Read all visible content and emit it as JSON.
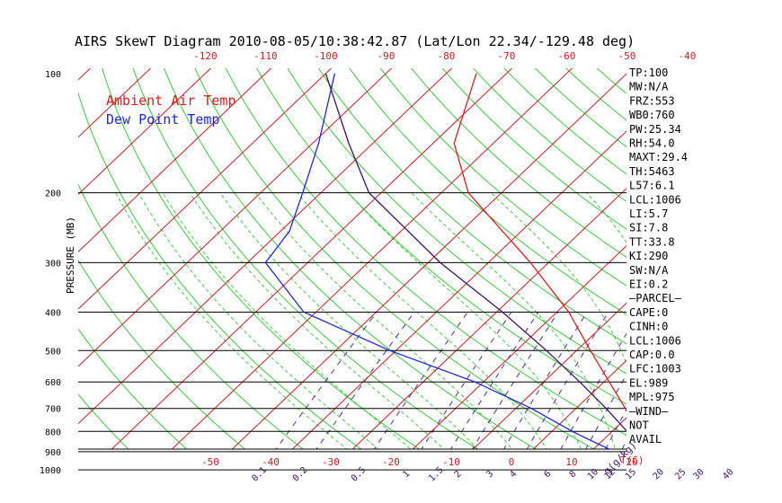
{
  "chart_data": {
    "type": "line",
    "title": "AIRS SkewT Diagram 2010-08-05/10:38:42.87 (Lat/Lon 22.34/-129.48 deg)",
    "ylabel": "PRESSURE (MB)",
    "xlabel": "T(C)",
    "mixing_ratio_label": "g(g/kg)",
    "y_scale": "log",
    "ylim": [
      1050,
      100
    ],
    "pressure_ticks": [
      "100",
      "200",
      "300",
      "400",
      "500",
      "600",
      "700",
      "800",
      "900",
      "1000"
    ],
    "bottom_temp_ticks": [
      "-50",
      "-40",
      "-30",
      "-20",
      "-10",
      "0",
      "10",
      "20"
    ],
    "top_temp_ticks": [
      "-120",
      "-110",
      "-100",
      "-90",
      "-80",
      "-70",
      "-60",
      "-50",
      "-40"
    ],
    "mixing_ratio_ticks": [
      "0.1",
      "0.2",
      "0.5",
      "1",
      "1.5",
      "2",
      "3",
      "4",
      "6",
      "8",
      "10",
      "12",
      "15",
      "20",
      "25",
      "30",
      "40"
    ],
    "legend": [
      {
        "name": "Ambient Air Temp",
        "color": "#d81e1e"
      },
      {
        "name": "Dew Point Temp",
        "color": "#1e28d2"
      }
    ],
    "series": [
      {
        "name": "Ambient Air Temp",
        "color": "#d81e1e",
        "pressure": [
          1000,
          950,
          900,
          850,
          800,
          700,
          600,
          500,
          400,
          300,
          200,
          150,
          100
        ],
        "values": [
          25.2,
          23.0,
          20.2,
          17.6,
          14.6,
          8.2,
          0.9,
          -7.7,
          -18.0,
          -33.0,
          -55.5,
          -66.5,
          -75.0
        ]
      },
      {
        "name": "Dew Point Temp",
        "color": "#1e28d2",
        "pressure": [
          1000,
          950,
          900,
          850,
          800,
          700,
          600,
          500,
          400,
          300,
          250,
          200,
          150,
          100
        ],
        "values": [
          21.8,
          17.5,
          14.0,
          8.8,
          3.4,
          -7.4,
          -21.4,
          -41.0,
          -62.0,
          -77.0,
          -78.5,
          -83.0,
          -89.0,
          -98.5
        ]
      },
      {
        "name": "Parcel",
        "color": "#3a1466",
        "pressure": [
          1000,
          950,
          900,
          850,
          800,
          700,
          600,
          500,
          400,
          300,
          200,
          150,
          100
        ],
        "values": [
          25.0,
          22.1,
          19.2,
          16.0,
          12.5,
          5.0,
          -4.0,
          -15.0,
          -29.0,
          -48.0,
          -72.0,
          -84.0,
          -100.0
        ]
      }
    ],
    "indices": [
      "TP:100",
      "MW:N/A",
      "FRZ:553",
      "WB0:760",
      "PW:25.34",
      "RH:54.0",
      "MAXT:29.4",
      "TH:5463",
      "L57:6.1",
      "LCL:1006",
      "LI:5.7",
      "SI:7.8",
      "TT:33.8",
      "KI:290",
      "SW:N/A",
      "EI:0.2",
      "—PARCEL—",
      "CAPE:0",
      "CINH:0",
      "LCL:1006",
      "CAP:0.0",
      "LFC:1003",
      "EL:989",
      "MPL:975",
      "—WIND—",
      "NOT",
      "AVAIL"
    ]
  }
}
